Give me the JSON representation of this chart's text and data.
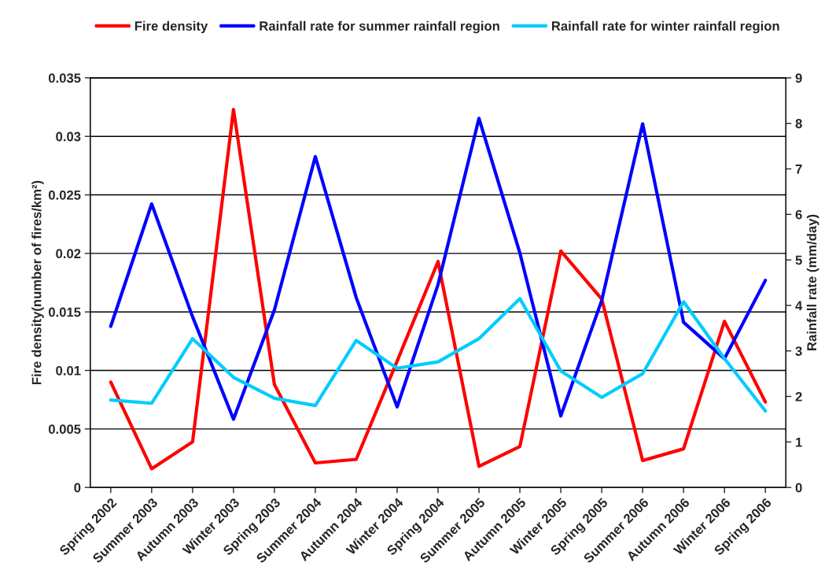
{
  "chart_data": {
    "type": "line",
    "categories": [
      "Spring 2002",
      "Summer 2003",
      "Autumn 2003",
      "Winter 2003",
      "Spring 2003",
      "Summer 2004",
      "Autumn 2004",
      "Winter 2004",
      "Spring 2004",
      "Summer 2005",
      "Autumn 2005",
      "Winter 2005",
      "Spring 2005",
      "Summer 2006",
      "Autumn 2006",
      "Winter 2006",
      "Spring 2006"
    ],
    "series": [
      {
        "name": "Fire density",
        "color": "#ff0000",
        "values": [
          0.009,
          0.0016,
          0.0039,
          0.0323,
          0.0088,
          0.0021,
          0.0024,
          0.0108,
          0.0193,
          0.0018,
          0.0035,
          0.0202,
          0.0161,
          0.0023,
          0.0033,
          0.0142,
          0.0073
        ]
      },
      {
        "name": "Rainfall rate for summer rainfall region",
        "color": "#0000ff",
        "axis": "y2",
        "values": [
          3.54,
          6.23,
          3.75,
          1.5,
          3.9,
          7.27,
          4.17,
          1.77,
          4.46,
          8.11,
          5.15,
          1.57,
          4.11,
          7.99,
          3.63,
          2.83,
          4.55
        ]
      },
      {
        "name": "Rainfall rate for winter rainfall region",
        "color": "#00ccff",
        "axis": "y2",
        "values": [
          1.92,
          1.85,
          3.27,
          2.42,
          1.96,
          1.8,
          3.23,
          2.62,
          2.76,
          3.27,
          4.15,
          2.56,
          1.98,
          2.5,
          4.08,
          2.83,
          1.68
        ]
      }
    ],
    "ylabel": "Fire density(number of fires/km²)",
    "y2label": "Rainfall rate (mm/day)",
    "ylim": [
      0,
      0.035
    ],
    "yticks": [
      0,
      0.005,
      0.01,
      0.015,
      0.02,
      0.025,
      0.03,
      0.035
    ],
    "y2lim": [
      0,
      9
    ],
    "y2ticks": [
      0,
      1,
      2,
      3,
      4,
      5,
      6,
      7,
      8,
      9
    ],
    "grid": "y",
    "legend": "top",
    "marker": "none",
    "line_style": "solid"
  }
}
